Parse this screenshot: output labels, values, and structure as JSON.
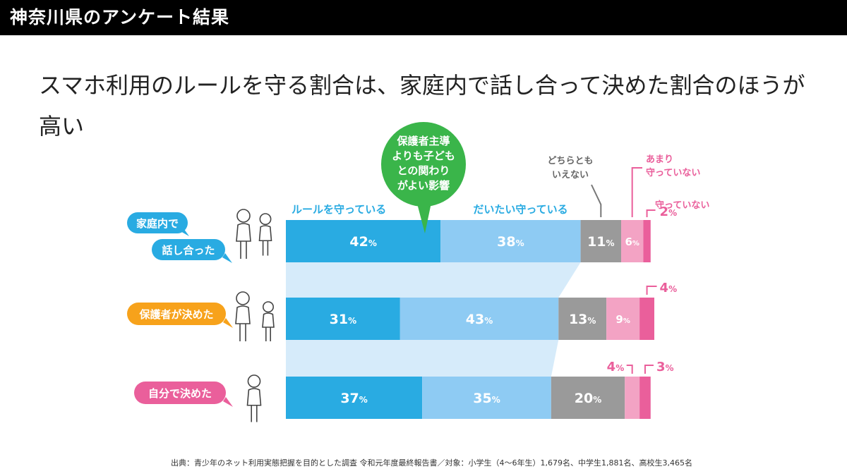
{
  "header": {
    "title": "神奈川県のアンケート結果"
  },
  "headline": "スマホ利用のルールを守る割合は、家庭内で話し合って決めた割合のほうが高い",
  "colors": {
    "series": [
      "#29abe2",
      "#8ecbf3",
      "#9a9a9a",
      "#f3a3c4",
      "#ea5f9b"
    ],
    "connector": "#d6ebfa",
    "callout": "#3ab54a",
    "row_labels": [
      "#29abe2",
      "#f7a21b",
      "#ea5f9b"
    ]
  },
  "chart_data": {
    "type": "bar",
    "orientation": "horizontal",
    "stacked": true,
    "percent": true,
    "categories": [
      "家庭内で話し合った",
      "保護者が決めた",
      "自分で決めた"
    ],
    "category_label_lines": [
      [
        "家庭内で",
        "話し合った"
      ],
      [
        "保護者が決めた"
      ],
      [
        "自分で決めた"
      ]
    ],
    "series": [
      {
        "name": "ルールを守っている",
        "values": [
          42,
          31,
          37
        ]
      },
      {
        "name": "だいたい守っている",
        "values": [
          38,
          43,
          35
        ]
      },
      {
        "name": "どちらともいえない",
        "name_lines": [
          "どちらとも",
          "いえない"
        ],
        "values": [
          11,
          13,
          20
        ]
      },
      {
        "name": "あまり守っていない",
        "name_lines": [
          "あまり",
          "守っていない"
        ],
        "values": [
          6,
          9,
          4
        ]
      },
      {
        "name": "守っていない",
        "values": [
          2,
          4,
          3
        ]
      }
    ],
    "callout": {
      "text": "保護者主導よりも子どもとの関わりがよい影響",
      "lines": [
        "保護者主導",
        "よりも子ども",
        "との関わり",
        "がよい影響"
      ]
    },
    "unit": "%"
  },
  "source": "出典：青少年のネット利用実態把握を目的とした調査 令和元年度最終報告書／対象：小学生（4〜6年生）1,679名、中学生1,881名、高校生3,465名"
}
